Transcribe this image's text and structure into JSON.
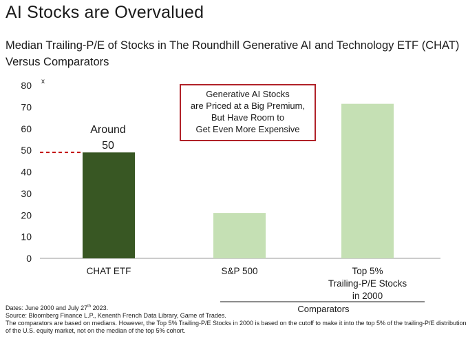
{
  "title": "AI Stocks are Overvalued",
  "subtitle": "Median Trailing-P/E of Stocks in The Roundhill Generative AI and Technology ETF (CHAT) Versus Comparators",
  "chart_data": {
    "type": "bar",
    "categories": [
      "CHAT ETF",
      "S&P 500",
      "Top 5% Trailing-P/E Stocks in 2000"
    ],
    "category_lines": [
      [
        "CHAT ETF"
      ],
      [
        "S&P 500"
      ],
      [
        "Top 5%",
        "Trailing-P/E Stocks",
        "in 2000"
      ]
    ],
    "values": [
      49,
      21,
      71.5
    ],
    "bar_colors": [
      "#385723",
      "#c5e0b4",
      "#c5e0b4"
    ],
    "ylim": [
      0,
      80
    ],
    "yticks": [
      0,
      10,
      20,
      30,
      40,
      50,
      60,
      70,
      80
    ],
    "yunit": "x",
    "grid": false,
    "reference_line": {
      "value": 49,
      "color": "#c00000",
      "style": "dashed"
    },
    "annotation": [
      "Around",
      "50"
    ],
    "callout": {
      "lines": [
        "Generative AI Stocks",
        "are Priced at a Big Premium,",
        "But Have Room to",
        "Get Even More Expensive"
      ],
      "border_color": "#b02128"
    },
    "group_label": "Comparators"
  },
  "footnotes": {
    "dates_prefix": "Dates: June 2000 and July 27",
    "dates_sup": "th",
    "dates_suffix": " 2023.",
    "source": "Source: Bloomberg Finance L.P., Kenenth French Data Library, Game of Trades.",
    "note": "The comparators are based on medians. However, the Top 5% Trailing-P/E Stocks in 2000 is based on the cutoff to make it into the top 5% of the trailing-P/E distribution of the U.S. equity market, not on the median of the top 5% cohort."
  }
}
